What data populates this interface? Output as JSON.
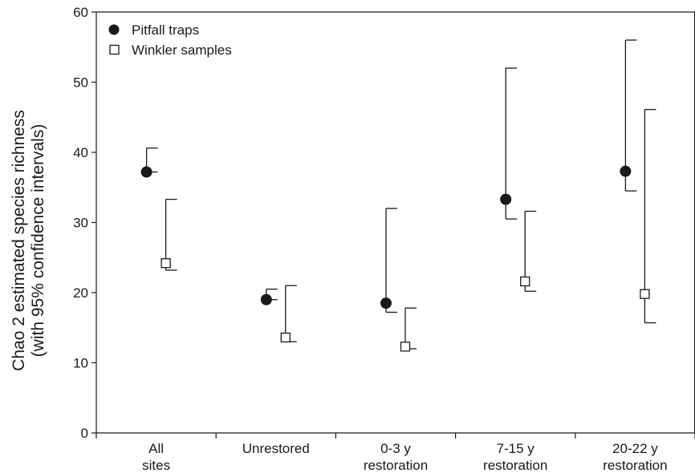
{
  "chart_data": {
    "type": "scatter",
    "ylabel_line1": "Chao 2 estimated species richness",
    "ylabel_line2": "(with 95% confidence intervals)",
    "ylim": [
      0,
      60
    ],
    "yticks": [
      0,
      10,
      20,
      30,
      40,
      50,
      60
    ],
    "categories": [
      {
        "label": [
          "All",
          "sites"
        ]
      },
      {
        "label": [
          "Unrestored"
        ]
      },
      {
        "label": [
          "0-3 y",
          "restoration"
        ]
      },
      {
        "label": [
          "7-15 y",
          "restoration"
        ]
      },
      {
        "label": [
          "20-22 y",
          "restoration"
        ]
      }
    ],
    "legend_position": "top-left",
    "series": [
      {
        "name": "Pitfall traps",
        "marker": "filled-circle",
        "color": "#1a1a1a",
        "values": [
          37.2,
          19.0,
          18.5,
          33.3,
          37.3
        ],
        "ci_lower": [
          37.2,
          19.0,
          17.2,
          30.5,
          34.5
        ],
        "ci_upper": [
          40.6,
          20.5,
          32.0,
          52.0,
          56.0
        ]
      },
      {
        "name": "Winkler samples",
        "marker": "open-square",
        "color": "#1a1a1a",
        "values": [
          24.2,
          13.6,
          12.3,
          21.6,
          19.8
        ],
        "ci_lower": [
          23.2,
          13.0,
          12.0,
          20.2,
          15.7
        ],
        "ci_upper": [
          33.3,
          21.0,
          17.8,
          31.6,
          46.1
        ]
      }
    ]
  }
}
